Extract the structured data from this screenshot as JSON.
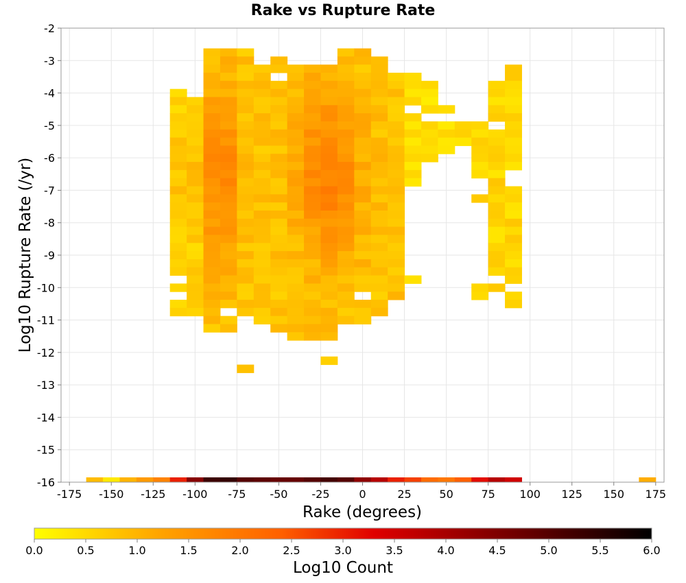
{
  "chart_data": {
    "type": "heatmap",
    "title": "Rake vs Rupture Rate",
    "xlabel": "Rake (degrees)",
    "ylabel": "Log10 Rupture Rate (/yr)",
    "colorbar_label": "Log10 Count",
    "xlim": [
      -180,
      180
    ],
    "ylim": [
      -16,
      -2
    ],
    "x_ticks": [
      "-175",
      "-150",
      "-125",
      "-100",
      "-75",
      "-50",
      "-25",
      "0",
      "25",
      "50",
      "75",
      "100",
      "125",
      "150",
      "175"
    ],
    "y_ticks": [
      "-2",
      "-3",
      "-4",
      "-5",
      "-6",
      "-7",
      "-8",
      "-9",
      "-10",
      "-11",
      "-12",
      "-13",
      "-14",
      "-15",
      "-16"
    ],
    "colorbar_ticks": [
      "0.0",
      "0.5",
      "1.0",
      "1.5",
      "2.0",
      "2.5",
      "3.0",
      "3.5",
      "4.0",
      "4.5",
      "5.0",
      "5.5",
      "6.0"
    ],
    "colorbar_range": [
      0,
      6
    ],
    "colormap": [
      "#ffff00",
      "#ffa500",
      "#ff6000",
      "#e00000",
      "#700000",
      "#000000"
    ],
    "grid": true,
    "bin_width": 10,
    "bin_height": 0.25,
    "bin_edges_note": "",
    "bins": [
      {
        "x": -160,
        "y": -16,
        "count": 0.9
      },
      {
        "x": -150,
        "y": -16,
        "count": 0.3
      },
      {
        "x": -140,
        "y": -16,
        "count": 1.0
      },
      {
        "x": -130,
        "y": -16,
        "count": 1.4
      },
      {
        "x": -120,
        "y": -16,
        "count": 1.8
      },
      {
        "x": -110,
        "y": -16,
        "count": 3.0
      },
      {
        "x": -100,
        "y": -16,
        "count": 4.4
      },
      {
        "x": -90,
        "y": -16,
        "count": 5.3
      },
      {
        "x": -80,
        "y": -16,
        "count": 5.4
      },
      {
        "x": -70,
        "y": -16,
        "count": 5.0
      },
      {
        "x": -60,
        "y": -16,
        "count": 4.9
      },
      {
        "x": -50,
        "y": -16,
        "count": 4.8
      },
      {
        "x": -40,
        "y": -16,
        "count": 4.8
      },
      {
        "x": -30,
        "y": -16,
        "count": 5.0
      },
      {
        "x": -20,
        "y": -16,
        "count": 5.2
      },
      {
        "x": -10,
        "y": -16,
        "count": 5.0
      },
      {
        "x": 0,
        "y": -16,
        "count": 4.3
      },
      {
        "x": 10,
        "y": -16,
        "count": 3.8
      },
      {
        "x": 20,
        "y": -16,
        "count": 3.0
      },
      {
        "x": 30,
        "y": -16,
        "count": 2.7
      },
      {
        "x": 40,
        "y": -16,
        "count": 2.2
      },
      {
        "x": 50,
        "y": -16,
        "count": 2.0
      },
      {
        "x": 60,
        "y": -16,
        "count": 2.4
      },
      {
        "x": 70,
        "y": -16,
        "count": 3.2
      },
      {
        "x": 80,
        "y": -16,
        "count": 3.8
      },
      {
        "x": 90,
        "y": -16,
        "count": 3.5
      },
      {
        "x": 170,
        "y": -16,
        "count": 1.1
      }
    ],
    "envelope_rows": [
      {
        "y": -2.75,
        "x": [
          -90,
          -80,
          -70,
          -10,
          0
        ]
      },
      {
        "y": -3.0,
        "x": [
          -90,
          -80,
          -70,
          -50,
          -10,
          0,
          10
        ]
      },
      {
        "y": -3.25,
        "x": [
          -90,
          -80,
          -70,
          -60,
          -50,
          -40,
          -30,
          -20,
          -10,
          0,
          10,
          90
        ]
      },
      {
        "y": -3.5,
        "x": [
          -90,
          -80,
          -70,
          -60,
          -40,
          -30,
          -20,
          -10,
          0,
          10,
          20,
          30,
          90
        ]
      },
      {
        "y": -3.75,
        "x": [
          -90,
          -80,
          -70,
          -60,
          -50,
          -40,
          -30,
          -20,
          -10,
          0,
          10,
          20,
          30,
          40,
          80,
          90
        ]
      },
      {
        "y": -4.0,
        "x": [
          -110,
          -90,
          -80,
          -70,
          -60,
          -50,
          -40,
          -30,
          -20,
          -10,
          0,
          10,
          20,
          30,
          40,
          80,
          90
        ]
      },
      {
        "y": -4.25,
        "x": [
          -110,
          -100,
          -90,
          -80,
          -70,
          -60,
          -50,
          -40,
          -30,
          -20,
          -10,
          0,
          10,
          20,
          30,
          40,
          80,
          90
        ]
      },
      {
        "y": -4.5,
        "x": [
          -110,
          -100,
          -90,
          -80,
          -70,
          -60,
          -50,
          -40,
          -30,
          -20,
          -10,
          0,
          10,
          20,
          40,
          50,
          80,
          90
        ]
      },
      {
        "y": -4.75,
        "x": [
          -110,
          -100,
          -90,
          -80,
          -70,
          -60,
          -50,
          -40,
          -30,
          -20,
          -10,
          0,
          10,
          20,
          30,
          80,
          90
        ]
      },
      {
        "y": -5.0,
        "x": [
          -110,
          -100,
          -90,
          -80,
          -70,
          -60,
          -50,
          -40,
          -30,
          -20,
          -10,
          0,
          10,
          20,
          30,
          40,
          50,
          60,
          70,
          90
        ]
      },
      {
        "y": -5.25,
        "x": [
          -110,
          -100,
          -90,
          -80,
          -70,
          -60,
          -50,
          -40,
          -30,
          -20,
          -10,
          0,
          10,
          20,
          30,
          40,
          50,
          60,
          70,
          80,
          90
        ]
      },
      {
        "y": -5.5,
        "x": [
          -110,
          -100,
          -90,
          -80,
          -70,
          -60,
          -50,
          -40,
          -30,
          -20,
          -10,
          0,
          10,
          20,
          30,
          40,
          50,
          60,
          70,
          80,
          90
        ]
      },
      {
        "y": -5.75,
        "x": [
          -110,
          -100,
          -90,
          -80,
          -70,
          -60,
          -50,
          -40,
          -30,
          -20,
          -10,
          0,
          10,
          20,
          30,
          40,
          50,
          70,
          80,
          90
        ]
      },
      {
        "y": -6.0,
        "x": [
          -110,
          -100,
          -90,
          -80,
          -70,
          -60,
          -50,
          -40,
          -30,
          -20,
          -10,
          0,
          10,
          20,
          30,
          40,
          70,
          80,
          90
        ]
      },
      {
        "y": -6.25,
        "x": [
          -110,
          -100,
          -90,
          -80,
          -70,
          -60,
          -50,
          -40,
          -30,
          -20,
          -10,
          0,
          10,
          20,
          30,
          70,
          80,
          90
        ]
      },
      {
        "y": -6.5,
        "x": [
          -110,
          -100,
          -90,
          -80,
          -70,
          -60,
          -50,
          -40,
          -30,
          -20,
          -10,
          0,
          10,
          20,
          30,
          70,
          80
        ]
      },
      {
        "y": -6.75,
        "x": [
          -110,
          -100,
          -90,
          -80,
          -70,
          -60,
          -50,
          -40,
          -30,
          -20,
          -10,
          0,
          10,
          20,
          30,
          80
        ]
      },
      {
        "y": -7.0,
        "x": [
          -110,
          -100,
          -90,
          -80,
          -70,
          -60,
          -50,
          -40,
          -30,
          -20,
          -10,
          0,
          10,
          20,
          80,
          90
        ]
      },
      {
        "y": -7.25,
        "x": [
          -110,
          -100,
          -90,
          -80,
          -70,
          -60,
          -50,
          -40,
          -30,
          -20,
          -10,
          0,
          10,
          20,
          70,
          80,
          90
        ]
      },
      {
        "y": -7.5,
        "x": [
          -110,
          -100,
          -90,
          -80,
          -70,
          -60,
          -50,
          -40,
          -30,
          -20,
          -10,
          0,
          10,
          20,
          80,
          90
        ]
      },
      {
        "y": -7.75,
        "x": [
          -110,
          -100,
          -90,
          -80,
          -70,
          -60,
          -50,
          -40,
          -30,
          -20,
          -10,
          0,
          10,
          20,
          80,
          90
        ]
      },
      {
        "y": -8.0,
        "x": [
          -110,
          -100,
          -90,
          -80,
          -70,
          -60,
          -50,
          -40,
          -30,
          -20,
          -10,
          0,
          10,
          20,
          80,
          90
        ]
      },
      {
        "y": -8.25,
        "x": [
          -110,
          -100,
          -90,
          -80,
          -70,
          -60,
          -50,
          -40,
          -30,
          -20,
          -10,
          0,
          10,
          20,
          80,
          90
        ]
      },
      {
        "y": -8.5,
        "x": [
          -110,
          -100,
          -90,
          -80,
          -70,
          -60,
          -50,
          -40,
          -30,
          -20,
          -10,
          0,
          10,
          20,
          80,
          90
        ]
      },
      {
        "y": -8.75,
        "x": [
          -110,
          -100,
          -90,
          -80,
          -70,
          -60,
          -50,
          -40,
          -30,
          -20,
          -10,
          0,
          10,
          20,
          80,
          90
        ]
      },
      {
        "y": -9.0,
        "x": [
          -110,
          -100,
          -90,
          -80,
          -70,
          -60,
          -50,
          -40,
          -30,
          -20,
          -10,
          0,
          10,
          20,
          80,
          90
        ]
      },
      {
        "y": -9.25,
        "x": [
          -110,
          -100,
          -90,
          -80,
          -70,
          -60,
          -50,
          -40,
          -30,
          -20,
          -10,
          0,
          10,
          20,
          80,
          90
        ]
      },
      {
        "y": -9.5,
        "x": [
          -110,
          -100,
          -90,
          -80,
          -70,
          -60,
          -50,
          -40,
          -30,
          -20,
          -10,
          0,
          10,
          20,
          80,
          90
        ]
      },
      {
        "y": -9.75,
        "x": [
          -100,
          -90,
          -80,
          -70,
          -60,
          -50,
          -40,
          -30,
          -20,
          -10,
          0,
          10,
          20,
          30,
          90
        ]
      },
      {
        "y": -10.0,
        "x": [
          -110,
          -100,
          -90,
          -80,
          -70,
          -60,
          -50,
          -40,
          -30,
          -20,
          -10,
          0,
          10,
          20,
          70,
          80
        ]
      },
      {
        "y": -10.25,
        "x": [
          -100,
          -90,
          -80,
          -70,
          -60,
          -50,
          -40,
          -30,
          -20,
          -10,
          10,
          20,
          70,
          90
        ]
      },
      {
        "y": -10.5,
        "x": [
          -110,
          -100,
          -90,
          -80,
          -70,
          -60,
          -50,
          -40,
          -30,
          -20,
          -10,
          0,
          10,
          90
        ]
      },
      {
        "y": -10.75,
        "x": [
          -110,
          -100,
          -90,
          -70,
          -60,
          -50,
          -40,
          -30,
          -20,
          -10,
          0,
          10
        ]
      },
      {
        "y": -11.0,
        "x": [
          -90,
          -80,
          -60,
          -50,
          -40,
          -30,
          -20,
          -10,
          0
        ]
      },
      {
        "y": -11.25,
        "x": [
          -90,
          -80,
          -50,
          -40,
          -30,
          -20
        ]
      },
      {
        "y": -11.5,
        "x": [
          -40,
          -30,
          -20
        ]
      },
      {
        "y": -12.25,
        "x": [
          -20
        ]
      },
      {
        "y": -12.5,
        "x": [
          -70
        ]
      }
    ]
  }
}
